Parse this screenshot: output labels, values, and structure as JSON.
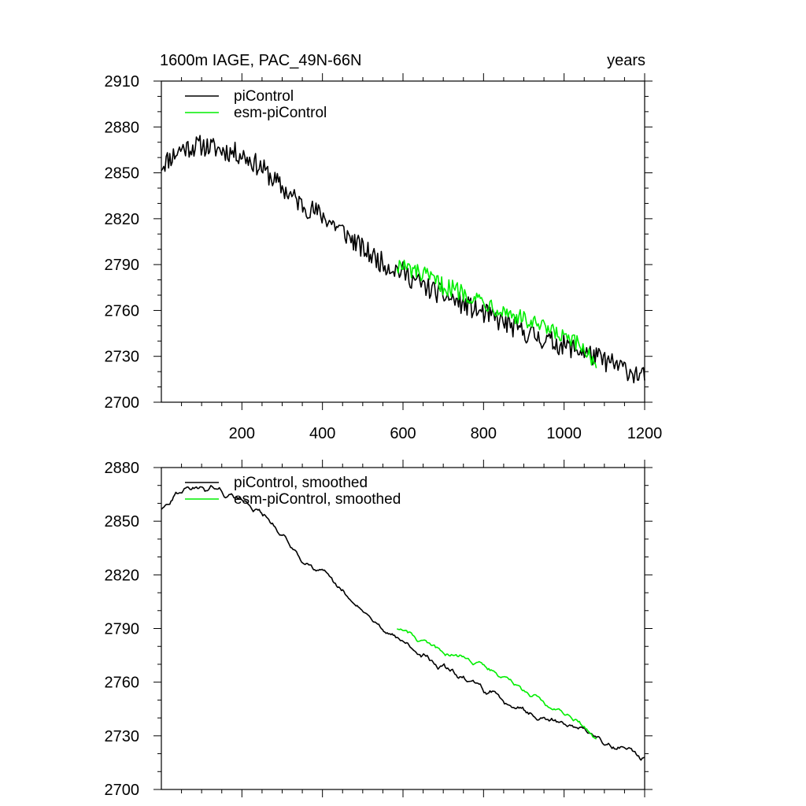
{
  "figure": {
    "title_left": "1600m IAGE, PAC_49N-66N",
    "title_right": "years"
  },
  "colors": {
    "pi": "#000000",
    "esm": "#00ee00",
    "axis": "#000000"
  },
  "chart_data": [
    {
      "type": "line",
      "panel": "top",
      "title": "1600m IAGE, PAC_49N-66N",
      "units": "years",
      "xlim": [
        0,
        1200
      ],
      "ylim": [
        2700,
        2910
      ],
      "xticks": [
        200,
        400,
        600,
        800,
        1000,
        1200
      ],
      "xtick_labels": [
        "200",
        "400",
        "600",
        "800",
        "1000",
        "1200"
      ],
      "yticks": [
        2700,
        2730,
        2760,
        2790,
        2820,
        2850,
        2880,
        2910
      ],
      "ytick_labels": [
        "2700",
        "2730",
        "2760",
        "2790",
        "2820",
        "2850",
        "2880",
        "2910"
      ],
      "legend": [
        "piControl",
        "esm-piControl"
      ],
      "legend_position": "top-left",
      "series": [
        {
          "name": "piControl",
          "color": "#000000",
          "x": [
            0,
            50,
            100,
            150,
            200,
            250,
            300,
            350,
            400,
            450,
            500,
            550,
            600,
            650,
            700,
            750,
            800,
            850,
            900,
            950,
            1000,
            1050,
            1100,
            1150,
            1200
          ],
          "y": [
            2855,
            2866,
            2868,
            2865,
            2862,
            2853,
            2840,
            2829,
            2822,
            2812,
            2800,
            2791,
            2785,
            2776,
            2770,
            2764,
            2758,
            2752,
            2746,
            2741,
            2737,
            2733,
            2727,
            2722,
            2716
          ],
          "noise": 7
        },
        {
          "name": "esm-piControl",
          "color": "#00ee00",
          "x": [
            585,
            650,
            700,
            750,
            800,
            850,
            900,
            950,
            1000,
            1050,
            1080
          ],
          "y": [
            2790,
            2783,
            2776,
            2772,
            2766,
            2760,
            2754,
            2748,
            2742,
            2735,
            2726
          ],
          "noise": 6
        }
      ]
    },
    {
      "type": "line",
      "panel": "bottom",
      "xlim": [
        0,
        1200
      ],
      "ylim": [
        2700,
        2880
      ],
      "xticks": [
        200,
        400,
        600,
        800,
        1000,
        1200
      ],
      "yticks": [
        2700,
        2730,
        2760,
        2790,
        2820,
        2850,
        2880
      ],
      "ytick_labels": [
        "2700",
        "2730",
        "2760",
        "2790",
        "2820",
        "2850",
        "2880"
      ],
      "legend": [
        "piControl, smoothed",
        "esm-piControl, smoothed"
      ],
      "legend_position": "top-left",
      "series": [
        {
          "name": "piControl, smoothed",
          "color": "#000000",
          "x": [
            0,
            50,
            100,
            150,
            200,
            250,
            300,
            350,
            400,
            450,
            500,
            550,
            600,
            650,
            700,
            750,
            800,
            850,
            900,
            950,
            1000,
            1050,
            1100,
            1150,
            1200
          ],
          "y": [
            2855,
            2868,
            2869,
            2866,
            2862,
            2854,
            2842,
            2829,
            2821,
            2810,
            2799,
            2790,
            2783,
            2774,
            2768,
            2762,
            2756,
            2750,
            2745,
            2740,
            2737,
            2733,
            2727,
            2722,
            2718
          ],
          "noise": 4
        },
        {
          "name": "esm-piControl, smoothed",
          "color": "#00ee00",
          "x": [
            585,
            650,
            700,
            750,
            800,
            850,
            900,
            950,
            1000,
            1050,
            1080
          ],
          "y": [
            2791,
            2783,
            2777,
            2774,
            2769,
            2763,
            2756,
            2749,
            2743,
            2736,
            2727
          ],
          "noise": 3
        }
      ]
    }
  ]
}
